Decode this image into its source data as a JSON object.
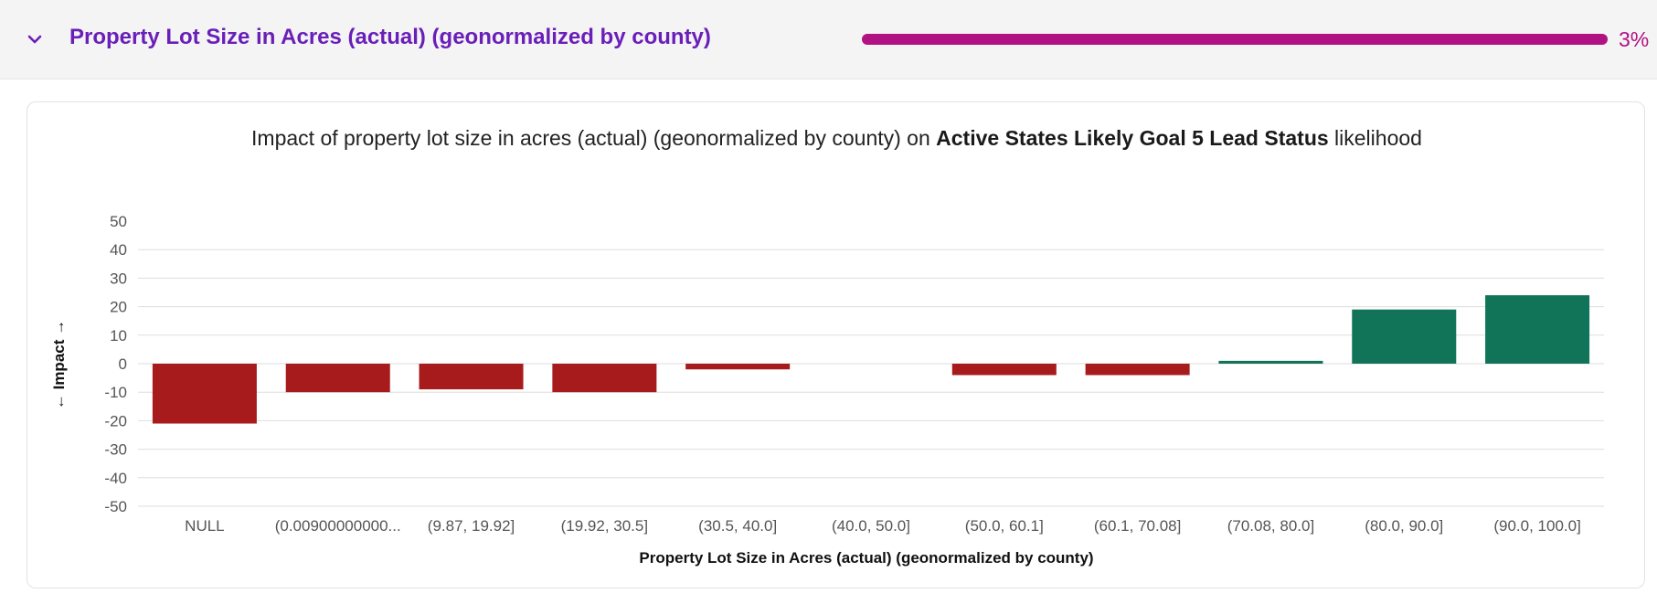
{
  "panel": {
    "title": "Property Lot Size in Acres (actual) (geonormalized by county)",
    "progress_percent": 3,
    "progress_label": "3%",
    "progress_color": "#b01283",
    "title_color": "#6a1fb8",
    "expand_icon": "chevron-down-icon"
  },
  "chart_title": {
    "prefix": "Impact of property lot size in acres (actual) (geonormalized by county) on ",
    "bold": "Active States Likely Goal 5 Lead Status",
    "suffix": " likelihood"
  },
  "chart_data": {
    "type": "bar",
    "title": "Impact of property lot size in acres (actual) (geonormalized by county) on Active States Likely Goal 5 Lead Status likelihood",
    "xlabel": "Property Lot Size in Acres (actual) (geonormalized by county)",
    "ylabel": "← Impact →",
    "ylim": [
      -50,
      50
    ],
    "yticks": [
      "50",
      "40",
      "30",
      "20",
      "10",
      "0",
      "-10",
      "-20",
      "-30",
      "-40",
      "-50"
    ],
    "grid": true,
    "categories": [
      "NULL",
      "(0.00900000000...",
      "(9.87, 19.92]",
      "(19.92, 30.5]",
      "(30.5, 40.0]",
      "(40.0, 50.0]",
      "(50.0, 60.1]",
      "(60.1, 70.08]",
      "(70.08, 80.0]",
      "(80.0, 90.0]",
      "(90.0, 100.0]"
    ],
    "values": [
      -21,
      -10,
      -9,
      -10,
      -2,
      0,
      -4,
      -4,
      1,
      19,
      24
    ],
    "colors": {
      "negative": "#a71b1c",
      "positive": "#117357"
    }
  }
}
